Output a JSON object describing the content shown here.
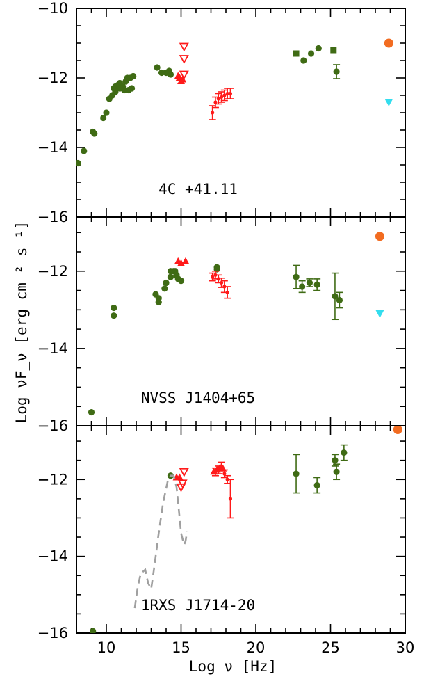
{
  "chart_data": {
    "type": "scatter",
    "xlabel": "Log ν [Hz]",
    "ylabel": "Log νF_ν  [erg cm⁻² s⁻¹]",
    "xlim": [
      8,
      30
    ],
    "x_ticks": [
      "10",
      "15",
      "20",
      "25",
      "30"
    ],
    "colors": {
      "green": "#3f6b14",
      "red": "#ff1a1a",
      "orange": "#f26c21",
      "cyan": "#33ddee",
      "grey": "#a0a0a0"
    },
    "panels": [
      {
        "label": "4C +41.11",
        "ylim": [
          -16,
          -10
        ],
        "y_ticks": [
          "-10",
          "-12",
          "-14",
          "-16"
        ],
        "series": [
          {
            "kind": "circle",
            "color": "green",
            "points": [
              [
                8.1,
                -14.45
              ],
              [
                8.5,
                -14.1
              ],
              [
                9.1,
                -13.55
              ],
              [
                9.2,
                -13.6
              ],
              [
                9.8,
                -13.15
              ],
              [
                10.0,
                -13.0
              ],
              [
                10.2,
                -12.6
              ],
              [
                10.4,
                -12.5
              ],
              [
                10.5,
                -12.3
              ],
              [
                10.6,
                -12.25
              ],
              [
                10.8,
                -12.2
              ],
              [
                10.9,
                -12.15
              ],
              [
                11.1,
                -12.25
              ],
              [
                11.3,
                -12.1
              ],
              [
                11.4,
                -12.0
              ],
              [
                11.6,
                -12.0
              ],
              [
                11.8,
                -11.95
              ],
              [
                10.6,
                -12.4
              ],
              [
                10.9,
                -12.3
              ],
              [
                11.2,
                -12.35
              ],
              [
                11.5,
                -12.35
              ],
              [
                11.7,
                -12.3
              ],
              [
                13.4,
                -11.7
              ],
              [
                13.7,
                -11.85
              ],
              [
                14.0,
                -11.85
              ],
              [
                14.2,
                -11.8
              ],
              [
                14.3,
                -11.9
              ],
              [
                23.2,
                -11.5
              ],
              [
                23.7,
                -11.3
              ],
              [
                24.2,
                -11.15
              ]
            ]
          },
          {
            "kind": "circle-err",
            "color": "green",
            "points": [
              [
                25.4,
                -11.82,
                0.2
              ]
            ]
          },
          {
            "kind": "square",
            "color": "green",
            "points": [
              [
                22.7,
                -11.3
              ],
              [
                25.2,
                -11.2
              ]
            ]
          },
          {
            "kind": "tri-down-open",
            "color": "red",
            "points": [
              [
                15.2,
                -11.1
              ],
              [
                15.2,
                -11.45
              ],
              [
                15.2,
                -11.9
              ]
            ]
          },
          {
            "kind": "tri-up",
            "color": "red",
            "points": [
              [
                14.9,
                -12.0
              ],
              [
                15.0,
                -12.1
              ],
              [
                15.1,
                -12.05
              ],
              [
                14.8,
                -11.95
              ]
            ]
          },
          {
            "kind": "errbar",
            "color": "red",
            "points": [
              [
                17.1,
                -13.0,
                0.2
              ],
              [
                17.3,
                -12.7,
                0.15
              ],
              [
                17.5,
                -12.6,
                0.15
              ],
              [
                17.7,
                -12.55,
                0.15
              ],
              [
                17.9,
                -12.5,
                0.15
              ],
              [
                18.1,
                -12.45,
                0.15
              ],
              [
                18.3,
                -12.45,
                0.15
              ]
            ]
          },
          {
            "kind": "circle-big",
            "color": "orange",
            "points": [
              [
                28.9,
                -11.0
              ]
            ]
          },
          {
            "kind": "tri-down",
            "color": "cyan",
            "points": [
              [
                28.9,
                -12.7
              ]
            ]
          }
        ]
      },
      {
        "label": "NVSS J1404+65",
        "ylim": [
          -16,
          -10.6
        ],
        "y_ticks": [
          "-12",
          "-14",
          "-16"
        ],
        "series": [
          {
            "kind": "circle",
            "color": "green",
            "points": [
              [
                9.0,
                -15.65
              ],
              [
                10.5,
                -12.95
              ],
              [
                10.5,
                -13.15
              ],
              [
                13.3,
                -12.6
              ],
              [
                13.5,
                -12.7
              ],
              [
                13.5,
                -12.8
              ],
              [
                13.9,
                -12.45
              ],
              [
                14.0,
                -12.3
              ],
              [
                14.3,
                -12.15
              ],
              [
                14.5,
                -12.0
              ],
              [
                14.6,
                -12.0
              ],
              [
                14.8,
                -12.2
              ],
              [
                15.0,
                -12.25
              ],
              [
                14.3,
                -12.0
              ],
              [
                14.7,
                -12.1
              ],
              [
                17.4,
                -11.9
              ],
              [
                17.4,
                -11.95
              ]
            ]
          },
          {
            "kind": "circle-err",
            "color": "green",
            "points": [
              [
                22.7,
                -12.15,
                0.3
              ],
              [
                23.1,
                -12.4,
                0.15
              ],
              [
                23.6,
                -12.3,
                0.1
              ],
              [
                24.1,
                -12.35,
                0.15
              ],
              [
                25.3,
                -12.65,
                0.6
              ],
              [
                25.6,
                -12.75,
                0.2
              ]
            ]
          },
          {
            "kind": "tri-up",
            "color": "red",
            "points": [
              [
                14.8,
                -11.75
              ],
              [
                15.0,
                -11.8
              ],
              [
                15.3,
                -11.75
              ]
            ]
          },
          {
            "kind": "errbar",
            "color": "red",
            "points": [
              [
                17.1,
                -12.15,
                0.1
              ],
              [
                17.3,
                -12.1,
                0.1
              ],
              [
                17.5,
                -12.2,
                0.1
              ],
              [
                17.7,
                -12.3,
                0.12
              ],
              [
                17.9,
                -12.4,
                0.15
              ],
              [
                18.1,
                -12.55,
                0.15
              ]
            ]
          },
          {
            "kind": "circle-big",
            "color": "orange",
            "points": [
              [
                28.3,
                -11.1
              ]
            ]
          },
          {
            "kind": "tri-down",
            "color": "cyan",
            "points": [
              [
                28.3,
                -13.1
              ]
            ]
          }
        ]
      },
      {
        "label": "1RXS J1714-20",
        "ylim": [
          -16,
          -10.6
        ],
        "y_ticks": [
          "-12",
          "-14",
          "-16"
        ],
        "series": [
          {
            "kind": "circle",
            "color": "green",
            "points": [
              [
                9.1,
                -15.95
              ],
              [
                14.3,
                -11.9
              ]
            ]
          },
          {
            "kind": "circle-err",
            "color": "green",
            "points": [
              [
                22.7,
                -11.85,
                0.5
              ],
              [
                24.1,
                -12.15,
                0.2
              ],
              [
                25.3,
                -11.5,
                0.15
              ],
              [
                25.4,
                -11.8,
                0.2
              ],
              [
                25.9,
                -11.3,
                0.2
              ]
            ]
          },
          {
            "kind": "tri-down-open",
            "color": "red",
            "points": [
              [
                15.2,
                -11.8
              ],
              [
                15.1,
                -12.1
              ],
              [
                15.0,
                -12.2
              ]
            ]
          },
          {
            "kind": "tri-up",
            "color": "red",
            "points": [
              [
                14.7,
                -11.95
              ],
              [
                14.9,
                -11.95
              ],
              [
                17.2,
                -11.8
              ],
              [
                17.4,
                -11.75
              ],
              [
                17.6,
                -11.7
              ],
              [
                17.8,
                -11.72
              ]
            ]
          },
          {
            "kind": "errbar",
            "color": "red",
            "points": [
              [
                17.3,
                -11.8,
                0.1
              ],
              [
                17.5,
                -11.75,
                0.1
              ],
              [
                17.7,
                -11.65,
                0.1
              ],
              [
                17.9,
                -11.85,
                0.1
              ],
              [
                18.1,
                -12.0,
                0.1
              ],
              [
                18.3,
                -12.5,
                0.5
              ]
            ]
          },
          {
            "kind": "circle-big",
            "color": "orange",
            "points": [
              [
                29.5,
                -10.7
              ]
            ]
          },
          {
            "kind": "dash-line",
            "color": "grey",
            "points": [
              [
                11.9,
                -15.35
              ],
              [
                12.1,
                -14.8
              ],
              [
                12.3,
                -14.45
              ],
              [
                12.6,
                -14.35
              ],
              [
                12.8,
                -14.7
              ],
              [
                13.0,
                -14.85
              ],
              [
                13.2,
                -14.3
              ],
              [
                13.5,
                -13.4
              ],
              [
                13.8,
                -12.6
              ],
              [
                14.1,
                -12.05
              ],
              [
                14.3,
                -11.9
              ],
              [
                14.5,
                -11.9
              ],
              [
                14.7,
                -12.2
              ],
              [
                14.9,
                -13.0
              ],
              [
                15.0,
                -13.4
              ],
              [
                15.2,
                -13.7
              ],
              [
                15.3,
                -13.6
              ],
              [
                15.4,
                -13.35
              ]
            ]
          }
        ]
      }
    ]
  }
}
